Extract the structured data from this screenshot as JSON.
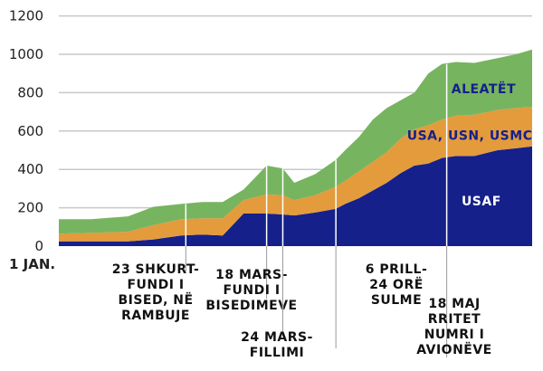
{
  "chart_data": {
    "type": "area",
    "stacked": true,
    "x": [
      0,
      14,
      30,
      41,
      53,
      62,
      71,
      80,
      90,
      97,
      102,
      111,
      120,
      124,
      130,
      136,
      142,
      148,
      154,
      160,
      166,
      172,
      180,
      190,
      198,
      205
    ],
    "series": [
      {
        "name": "USAF",
        "color": "#15208a",
        "values": [
          25,
          25,
          25,
          35,
          55,
          60,
          55,
          170,
          170,
          165,
          160,
          175,
          195,
          220,
          250,
          290,
          330,
          380,
          420,
          430,
          460,
          470,
          470,
          500,
          510,
          520
        ]
      },
      {
        "name": "USA, USN, USMC",
        "color": "#e39b3c",
        "values": [
          40,
          45,
          50,
          75,
          85,
          85,
          90,
          70,
          100,
          100,
          80,
          90,
          115,
          120,
          140,
          150,
          160,
          180,
          190,
          200,
          200,
          210,
          215,
          210,
          210,
          205
        ]
      },
      {
        "name": "ALEATËT",
        "color": "#77b460",
        "values": [
          75,
          70,
          80,
          95,
          80,
          85,
          85,
          55,
          150,
          140,
          90,
          110,
          140,
          160,
          180,
          220,
          230,
          200,
          190,
          270,
          290,
          280,
          270,
          270,
          280,
          300
        ]
      }
    ],
    "yticks": [
      0,
      200,
      400,
      600,
      800,
      1000,
      1200
    ],
    "ylim": [
      0,
      1250
    ],
    "xlim": [
      0,
      205
    ],
    "x_start_label": "1 JAN.",
    "grid": true,
    "annotations": [
      {
        "x": 55,
        "lines": [
          "23 SHKURT-",
          "FUNDI I",
          "BISED, NË",
          "RAMBUJE"
        ]
      },
      {
        "x": 90,
        "lines": [
          "18 MARS-",
          "FUNDI I",
          "BISEDIMEVE"
        ]
      },
      {
        "x": 97,
        "lines": [
          "24 MARS-",
          "FILLIMI"
        ]
      },
      {
        "x": 120,
        "lines": [
          "6 PRILL-",
          "24 ORË",
          "SULME"
        ]
      },
      {
        "x": 168,
        "lines": [
          "18 MAJ",
          "RRITET",
          "NUMRI I",
          "AVIONËVE"
        ]
      }
    ]
  }
}
